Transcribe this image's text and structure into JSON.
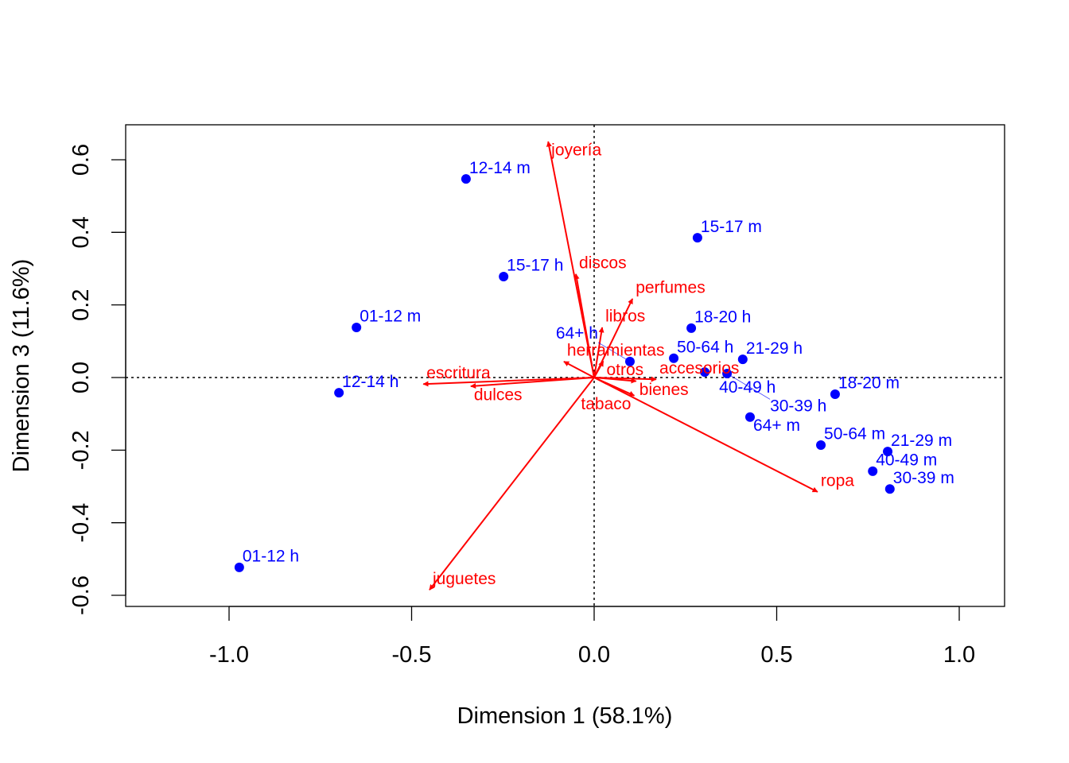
{
  "chart_data": {
    "type": "scatter",
    "subtype": "biplot",
    "title": "",
    "xlabel": "Dimension 1 (58.1%)",
    "ylabel": "Dimension 3 (11.6%)",
    "xlim": [
      -1.2,
      1.2
    ],
    "ylim": [
      -0.63,
      0.69
    ],
    "xticks": [
      -1.0,
      -0.5,
      0.0,
      0.5,
      1.0
    ],
    "xtick_labels": [
      "-1.0",
      "-0.5",
      "0.0",
      "0.5",
      "1.0"
    ],
    "yticks": [
      -0.6,
      -0.4,
      -0.2,
      0.0,
      0.2,
      0.4,
      0.6
    ],
    "ytick_labels": [
      "-0.6",
      "-0.4",
      "-0.2",
      "0.0",
      "0.2",
      "0.4",
      "0.6"
    ],
    "grid": false,
    "reference_lines": "dotted lines at x=0 and y=0",
    "colors": {
      "points": "#0000ff",
      "arrows": "#ff0000"
    },
    "points": [
      {
        "label": "12-14 m",
        "x": -0.351,
        "y": 0.547
      },
      {
        "label": "15-17 m",
        "x": 0.283,
        "y": 0.385
      },
      {
        "label": "15-17 h",
        "x": -0.248,
        "y": 0.278
      },
      {
        "label": "01-12 m",
        "x": -0.651,
        "y": 0.138
      },
      {
        "label": "18-20 h",
        "x": 0.266,
        "y": 0.136
      },
      {
        "label": "64+ h",
        "x": 0.098,
        "y": 0.044
      },
      {
        "label": "50-64 h",
        "x": 0.218,
        "y": 0.053
      },
      {
        "label": "21-29 h",
        "x": 0.407,
        "y": 0.05
      },
      {
        "label": "40-49 h",
        "x": 0.303,
        "y": 0.015
      },
      {
        "label": "30-39 h",
        "x": 0.364,
        "y": 0.011
      },
      {
        "label": "12-14 h",
        "x": -0.699,
        "y": -0.042
      },
      {
        "label": "18-20 m",
        "x": 0.66,
        "y": -0.046
      },
      {
        "label": "64+ m",
        "x": 0.427,
        "y": -0.109
      },
      {
        "label": "50-64 m",
        "x": 0.621,
        "y": -0.186
      },
      {
        "label": "21-29 m",
        "x": 0.804,
        "y": -0.204
      },
      {
        "label": "40-49 m",
        "x": 0.763,
        "y": -0.258
      },
      {
        "label": "30-39 m",
        "x": 0.81,
        "y": -0.307
      },
      {
        "label": "01-12 h",
        "x": -0.972,
        "y": -0.523
      }
    ],
    "arrows": [
      {
        "label": "joyería",
        "x": -0.126,
        "y": 0.65
      },
      {
        "label": "discos",
        "x": -0.05,
        "y": 0.285
      },
      {
        "label": "perfumes",
        "x": 0.105,
        "y": 0.217
      },
      {
        "label": "libros",
        "x": 0.022,
        "y": 0.138
      },
      {
        "label": "herramientas",
        "x": -0.083,
        "y": 0.044
      },
      {
        "label": "otros",
        "x": 0.025,
        "y": 0.045
      },
      {
        "label": "accesorios",
        "x": 0.17,
        "y": -0.005
      },
      {
        "label": "bienes",
        "x": 0.115,
        "y": -0.01
      },
      {
        "label": "tabaco",
        "x": 0.11,
        "y": -0.05
      },
      {
        "label": "escritura",
        "x": -0.468,
        "y": -0.018
      },
      {
        "label": "dulces",
        "x": -0.338,
        "y": -0.024
      },
      {
        "label": "juguetes",
        "x": -0.451,
        "y": -0.585
      },
      {
        "label": "ropa",
        "x": 0.612,
        "y": -0.315
      }
    ]
  }
}
